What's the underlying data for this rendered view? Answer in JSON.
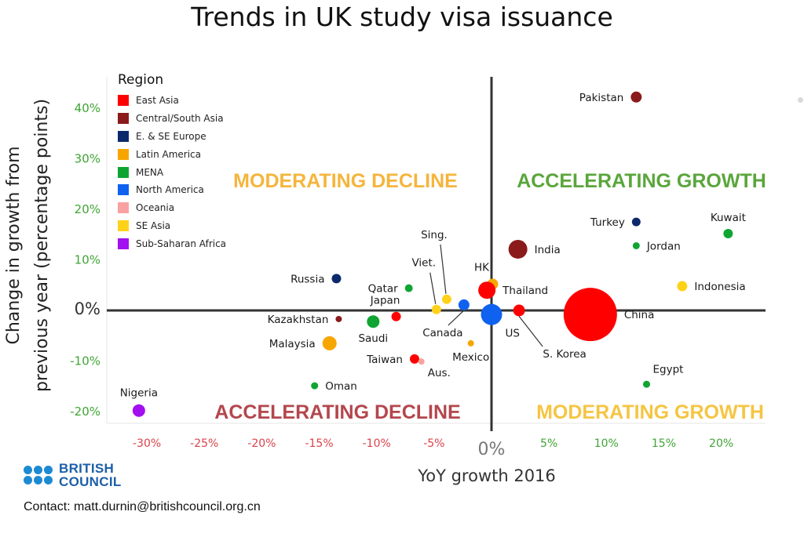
{
  "chart_data": {
    "type": "scatter",
    "title": "Trends in UK study visa issuance",
    "xlabel": "YoY growth 2016",
    "ylabel_lines": [
      "Change in growth from",
      "previous year (percentage points)"
    ],
    "xlim": [
      -33,
      24
    ],
    "ylim": [
      -22,
      46
    ],
    "x_ticks": [
      {
        "value": -30,
        "label": "-30%"
      },
      {
        "value": -25,
        "label": "-25%"
      },
      {
        "value": -20,
        "label": "-20%"
      },
      {
        "value": -15,
        "label": "-15%"
      },
      {
        "value": -10,
        "label": "-10%"
      },
      {
        "value": -5,
        "label": "-5%"
      },
      {
        "value": 0,
        "label": "0%"
      },
      {
        "value": 5,
        "label": "5%"
      },
      {
        "value": 10,
        "label": "10%"
      },
      {
        "value": 15,
        "label": "15%"
      },
      {
        "value": 20,
        "label": "20%"
      }
    ],
    "y_ticks": [
      {
        "value": 40,
        "label": "40%"
      },
      {
        "value": 30,
        "label": "30%"
      },
      {
        "value": 20,
        "label": "20%"
      },
      {
        "value": 10,
        "label": "10%"
      },
      {
        "value": 0,
        "label": "0%"
      },
      {
        "value": -10,
        "label": "-10%"
      },
      {
        "value": -20,
        "label": "-20%"
      }
    ],
    "quadrants": [
      {
        "label": "MODERATING DECLINE",
        "position": "top-left",
        "color": "#f5b53c"
      },
      {
        "label": "ACCELERATING GROWTH",
        "position": "top-right",
        "color": "#5aa63c"
      },
      {
        "label": "ACCELERATING DECLINE",
        "position": "bottom-left",
        "color": "#b3474d"
      },
      {
        "label": "MODERATING GROWTH",
        "position": "bottom-right",
        "color": "#f5c542"
      }
    ],
    "legend_title": "Region",
    "regions": [
      {
        "name": "East Asia",
        "color": "#ff0000"
      },
      {
        "name": "Central/South Asia",
        "color": "#8b1a1a"
      },
      {
        "name": "E. & SE Europe",
        "color": "#0c2a6b"
      },
      {
        "name": "Latin America",
        "color": "#f7a600"
      },
      {
        "name": "MENA",
        "color": "#10a532"
      },
      {
        "name": "North America",
        "color": "#0f62f0"
      },
      {
        "name": "Oceania",
        "color": "#f9a1a1"
      },
      {
        "name": "SE Asia",
        "color": "#ffd21a"
      },
      {
        "name": "Sub-Saharan Africa",
        "color": "#a20ff0"
      }
    ],
    "points": [
      {
        "name": "Pakistan",
        "region": "Central/South Asia",
        "x": 12.6,
        "y": 42.2,
        "size": 7,
        "label_pos": "left"
      },
      {
        "name": "Turkey",
        "region": "E. & SE Europe",
        "x": 12.6,
        "y": 17.5,
        "size": 5.5,
        "label_pos": "left"
      },
      {
        "name": "Kuwait",
        "region": "MENA",
        "x": 20.6,
        "y": 15.2,
        "size": 6,
        "label_pos": "above"
      },
      {
        "name": "Jordan",
        "region": "MENA",
        "x": 12.6,
        "y": 12.8,
        "size": 4.5,
        "label_pos": "right"
      },
      {
        "name": "India",
        "region": "Central/South Asia",
        "x": 2.3,
        "y": 12.1,
        "size": 12,
        "label_pos": "right"
      },
      {
        "name": "Indonesia",
        "region": "SE Asia",
        "x": 16.6,
        "y": 4.8,
        "size": 6.5,
        "label_pos": "right"
      },
      {
        "name": "HK",
        "region": "Latin America",
        "x": 0.1,
        "y": 5.2,
        "size": 7,
        "label_pos": "above-left"
      },
      {
        "name": "Russia",
        "region": "E. & SE Europe",
        "x": -13.5,
        "y": 6.3,
        "size": 6,
        "label_pos": "left"
      },
      {
        "name": "Qatar",
        "region": "MENA",
        "x": -7.2,
        "y": 4.4,
        "size": 5,
        "label_pos": "left"
      },
      {
        "name": "Sing.",
        "region": "SE Asia",
        "x": -3.9,
        "y": 2.2,
        "size": 6,
        "label_pos": "above-leader"
      },
      {
        "name": "Viet.",
        "region": "SE Asia",
        "x": -4.8,
        "y": 0.2,
        "size": 6,
        "label_pos": "above-leader"
      },
      {
        "name": "Thailand",
        "region": "East Asia",
        "x": -0.4,
        "y": 4.0,
        "size": 11,
        "label_pos": "right"
      },
      {
        "name": "Japan",
        "region": "East Asia",
        "x": -8.3,
        "y": -1.2,
        "size": 6,
        "label_pos": "above-left"
      },
      {
        "name": "Kazakhstan",
        "region": "Central/South Asia",
        "x": -13.3,
        "y": -1.7,
        "size": 4,
        "label_pos": "left"
      },
      {
        "name": "Saudi",
        "region": "MENA",
        "x": -10.3,
        "y": -2.2,
        "size": 8,
        "label_pos": "below"
      },
      {
        "name": "Canada",
        "region": "North America",
        "x": -2.4,
        "y": 1.1,
        "size": 7,
        "label_pos": "below-leader"
      },
      {
        "name": "US",
        "region": "North America",
        "x": 0.0,
        "y": -0.8,
        "size": 13.5,
        "label_pos": "below-right"
      },
      {
        "name": "S. Korea",
        "region": "East Asia",
        "x": 2.4,
        "y": 0.0,
        "size": 7.5,
        "label_pos": "below-leader"
      },
      {
        "name": "China",
        "region": "East Asia",
        "x": 8.6,
        "y": -0.8,
        "size": 34,
        "label_pos": "right"
      },
      {
        "name": "Malaysia",
        "region": "Latin America",
        "x": -14.1,
        "y": -6.5,
        "size": 9,
        "label_pos": "left"
      },
      {
        "name": "Mexico",
        "region": "Latin America",
        "x": -1.8,
        "y": -6.5,
        "size": 4,
        "label_pos": "below"
      },
      {
        "name": "Taiwan",
        "region": "East Asia",
        "x": -6.7,
        "y": -9.6,
        "size": 6,
        "label_pos": "left"
      },
      {
        "name": "Aus.",
        "region": "Oceania",
        "x": -6.1,
        "y": -10.1,
        "size": 4,
        "label_pos": "below-right"
      },
      {
        "name": "Oman",
        "region": "MENA",
        "x": -15.4,
        "y": -14.9,
        "size": 4.5,
        "label_pos": "right"
      },
      {
        "name": "Egypt",
        "region": "MENA",
        "x": 13.5,
        "y": -14.6,
        "size": 4.5,
        "label_pos": "above-right"
      },
      {
        "name": "Nigeria",
        "region": "Sub-Saharan Africa",
        "x": -30.7,
        "y": -19.8,
        "size": 8,
        "label_pos": "above"
      }
    ]
  },
  "branding": {
    "logo_line1": "BRITISH",
    "logo_line2": "COUNCIL",
    "logo_color": "#1c8ad3"
  },
  "contact": "Contact: matt.durnin@britishcouncil.org.cn"
}
